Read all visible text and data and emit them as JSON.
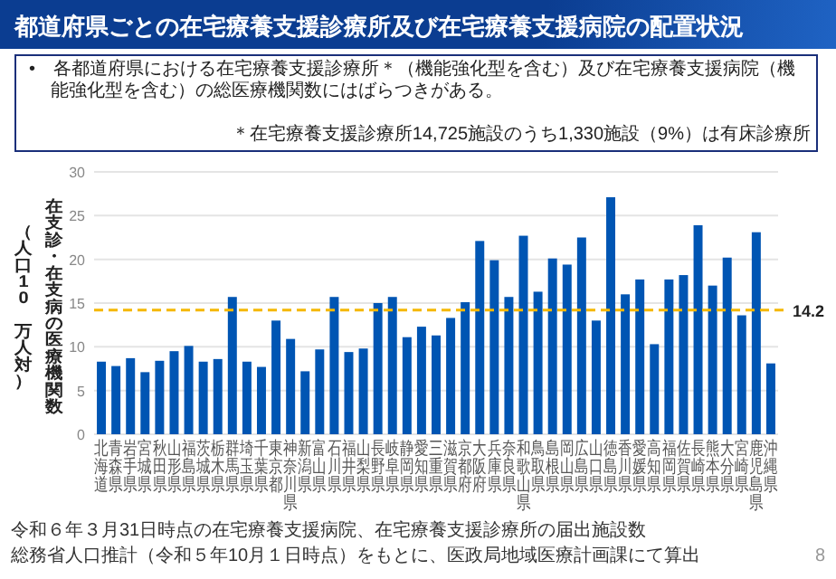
{
  "chart_data": {
    "type": "bar",
    "title": "都道府県ごとの在宅療養支援診療所及び在宅療養支援病院の配置状況",
    "subtitle": "•　各都道府県における在宅療養支援診療所＊（機能強化型を含む）及び在宅療養支援病院（機能強化型を含む）の総医療機関数にはばらつきがある。",
    "ylabel": "在支診・在支病の医療機関数",
    "categories": [
      "北海道",
      "青森県",
      "岩手県",
      "宮城県",
      "秋田県",
      "山形県",
      "福島県",
      "茨城県",
      "栃木県",
      "群馬県",
      "埼玉県",
      "千葉県",
      "東京都",
      "神奈川県",
      "新潟県",
      "富山県",
      "石川県",
      "福井県",
      "山梨県",
      "長野県",
      "岐阜県",
      "静岡県",
      "愛知県",
      "三重県",
      "滋賀県",
      "京都府",
      "大阪府",
      "兵庫県",
      "奈良県",
      "和歌山県",
      "鳥取県",
      "島根県",
      "岡山県",
      "広島県",
      "山口県",
      "徳島県",
      "香川県",
      "愛媛県",
      "高知県",
      "福岡県",
      "佐賀県",
      "長崎県",
      "熊本県",
      "大分県",
      "宮崎県",
      "鹿児島県",
      "沖縄県"
    ],
    "values": [
      8.3,
      7.8,
      8.7,
      7.1,
      8.4,
      9.5,
      10.1,
      8.3,
      8.6,
      15.7,
      8.3,
      7.7,
      13.0,
      10.9,
      7.2,
      9.7,
      15.7,
      9.4,
      9.8,
      15.0,
      15.7,
      11.1,
      12.3,
      11.3,
      13.3,
      15.1,
      22.1,
      19.9,
      15.7,
      22.7,
      16.3,
      20.1,
      19.4,
      22.5,
      13.0,
      27.1,
      16.0,
      17.7,
      10.3,
      17.7,
      18.2,
      23.9,
      17.0,
      20.2,
      13.6,
      23.1,
      8.1
    ],
    "color": "#0055b3",
    "ylim": [
      0,
      30
    ],
    "yticks": [
      0,
      5,
      10,
      15,
      20,
      25,
      30
    ],
    "grid": "y",
    "ref_lines": [
      {
        "axis": "y",
        "value": 14.2,
        "label": "14.2",
        "color": "#f5b800",
        "line_style": "dashed"
      }
    ],
    "annotations": [
      "（人口10　万人対）",
      "＊在宅療養支援診療所14,725施設のうち1,330施設（9%）は有床診療所",
      "令和６年３月31日時点の在宅療養支援病院、在宅療養支援診療所の届出施設数",
      "総務省人口推計（令和５年10月１日時点）をもとに、医政局地域医療計画課にて算出",
      "8"
    ]
  }
}
